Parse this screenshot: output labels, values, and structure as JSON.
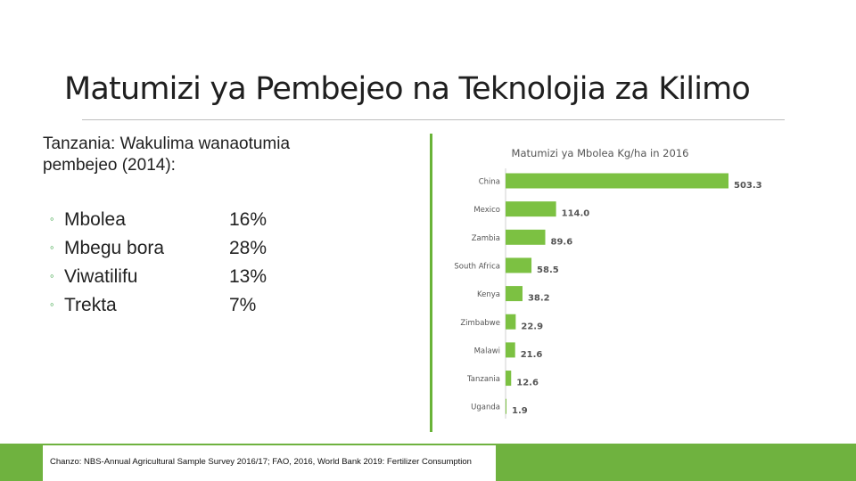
{
  "title": "Matumizi ya Pembejeo na Teknolojia za Kilimo",
  "subtitle": "Tanzania: Wakulima wanaotumia pembejeo (2014):",
  "bullet_symbol": "◦",
  "inputs": [
    {
      "name": "Mbolea",
      "value": "16%"
    },
    {
      "name": "Mbegu bora",
      "value": "28%"
    },
    {
      "name": "Viwatilifu",
      "value": "13%"
    },
    {
      "name": "Trekta",
      "value": "7%"
    }
  ],
  "chart_data": {
    "type": "bar",
    "orientation": "horizontal",
    "title": "Matumizi ya Mbolea Kg/ha in 2016",
    "categories": [
      "China",
      "Mexico",
      "Zambia",
      "South Africa",
      "Kenya",
      "Zimbabwe",
      "Malawi",
      "Tanzania",
      "Uganda"
    ],
    "values": [
      503.3,
      114.0,
      89.6,
      58.5,
      38.2,
      22.9,
      21.6,
      12.6,
      1.9
    ],
    "value_labels": [
      "503.3",
      "114.0",
      "89.6",
      "58.5",
      "38.2",
      "22.9",
      "21.6",
      "12.6",
      "1.9"
    ],
    "xlim": [
      0,
      503.3
    ],
    "bar_color": "#7cc142",
    "grid": false,
    "legend": "none"
  },
  "source": "Chanzo: NBS-Annual Agricultural Sample Survey 2016/17; FAO, 2016, World Bank 2019: Fertilizer Consumption",
  "colors": {
    "accent": "#6fb23f",
    "bar": "#7cc142"
  }
}
